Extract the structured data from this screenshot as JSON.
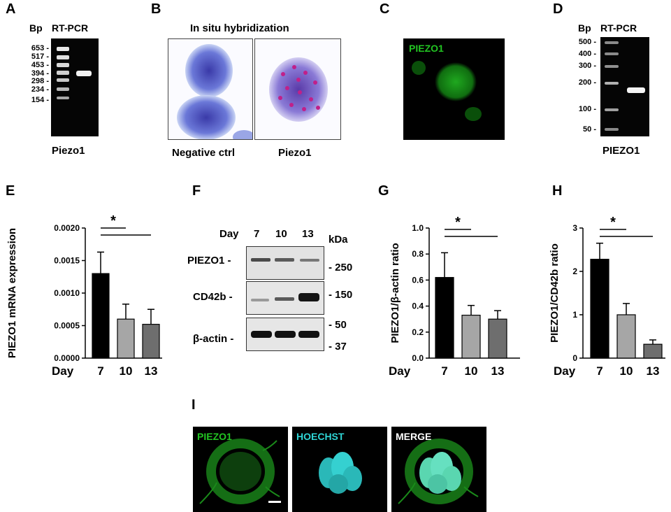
{
  "panels": {
    "A": {
      "label": "A",
      "bp_header": "Bp",
      "method": "RT-PCR",
      "ladder": [
        "653 -",
        "517 -",
        "453 -",
        "394 -",
        "298 -",
        "234 -",
        "154 -"
      ],
      "caption": "Piezo1"
    },
    "B": {
      "label": "B",
      "title": "In situ hybridization",
      "left_caption": "Negative ctrl",
      "right_caption": "Piezo1"
    },
    "C": {
      "label": "C",
      "stain": "PIEZO1"
    },
    "D": {
      "label": "D",
      "bp_header": "Bp",
      "method": "RT-PCR",
      "ladder": [
        "500 -",
        "400 -",
        "300 -",
        "200 -",
        "100 -",
        "50 -"
      ],
      "caption": "PIEZO1"
    },
    "F": {
      "label": "F",
      "day_label": "Day",
      "days": [
        "7",
        "10",
        "13"
      ],
      "kda_label": "kDa",
      "rows": [
        "PIEZO1 -",
        "CD42b -",
        "β-actin -"
      ],
      "markers": [
        "- 250",
        "- 150",
        "- 50",
        "- 37"
      ],
      "colors": {
        "band": "#111111",
        "blot_bg": "#e4e4e4"
      }
    },
    "I": {
      "label": "I",
      "stains": [
        "PIEZO1",
        "HOECHST",
        "MERGE"
      ],
      "colors": {
        "piezo": "#22c422",
        "hoechst": "#2fd5d5",
        "merge": "#ffffff"
      }
    }
  },
  "charts": {
    "E": {
      "label": "E",
      "ylabel": "PIEZO1 mRNA expression",
      "xlabel": "Day",
      "categories": [
        "7",
        "10",
        "13"
      ],
      "ytick_labels": [
        "0.0000",
        "0.0005",
        "0.0010",
        "0.0015",
        "0.0020"
      ],
      "sig": "*"
    },
    "G": {
      "label": "G",
      "ylabel": "PIEZO1/β-actin ratio",
      "xlabel": "Day",
      "categories": [
        "7",
        "10",
        "13"
      ],
      "ytick_labels": [
        "0.0",
        "0.2",
        "0.4",
        "0.6",
        "0.8",
        "1.0"
      ],
      "sig": "*"
    },
    "H": {
      "label": "H",
      "ylabel": "PIEZO1/CD42b ratio",
      "xlabel": "Day",
      "categories": [
        "7",
        "10",
        "13"
      ],
      "ytick_labels": [
        "0",
        "1",
        "2",
        "3"
      ],
      "sig": "*"
    }
  },
  "chart_data": [
    {
      "type": "bar",
      "categories": [
        "7",
        "10",
        "13"
      ],
      "values": [
        0.0013,
        0.0006,
        0.00052
      ],
      "errors": [
        0.00033,
        0.00023,
        0.00023
      ],
      "ylim": [
        0,
        0.002
      ],
      "yticks": [
        0,
        0.0005,
        0.001,
        0.0015,
        0.002
      ],
      "bar_colors": [
        "#000000",
        "#a6a6a6",
        "#6e6e6e"
      ]
    },
    {
      "type": "bar",
      "categories": [
        "7",
        "10",
        "13"
      ],
      "values": [
        0.62,
        0.33,
        0.3
      ],
      "errors": [
        0.19,
        0.075,
        0.065
      ],
      "ylim": [
        0,
        1.0
      ],
      "yticks": [
        0,
        0.2,
        0.4,
        0.6,
        0.8,
        1.0
      ],
      "bar_colors": [
        "#000000",
        "#a6a6a6",
        "#6e6e6e"
      ]
    },
    {
      "type": "bar",
      "categories": [
        "7",
        "10",
        "13"
      ],
      "values": [
        2.28,
        1.0,
        0.32
      ],
      "errors": [
        0.37,
        0.26,
        0.1
      ],
      "ylim": [
        0,
        3
      ],
      "yticks": [
        0,
        1,
        2,
        3
      ],
      "bar_colors": [
        "#000000",
        "#a6a6a6",
        "#6e6e6e"
      ]
    }
  ]
}
